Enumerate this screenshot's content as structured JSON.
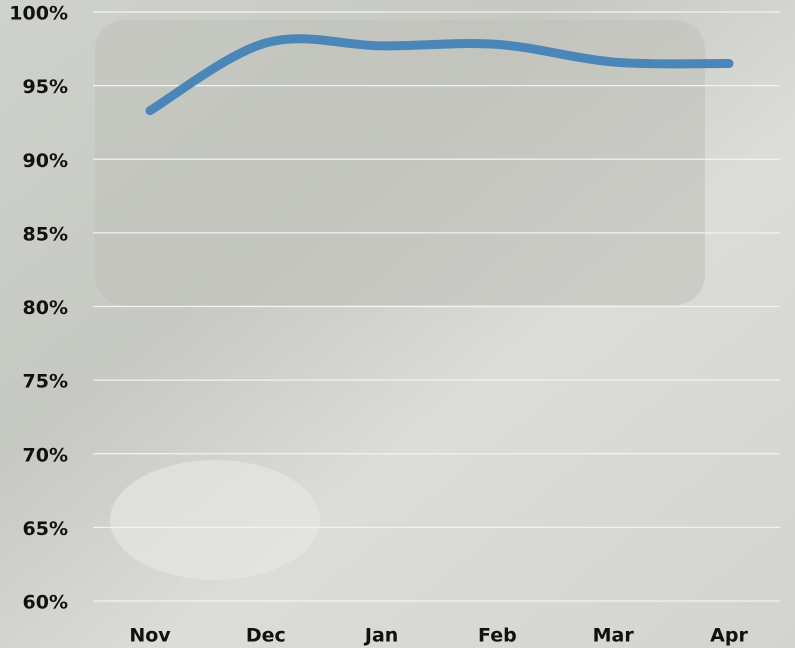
{
  "chart_data": {
    "type": "line",
    "categories": [
      "Nov",
      "Dec",
      "Jan",
      "Feb",
      "Mar",
      "Apr"
    ],
    "series": [
      {
        "color": "#4a86b8",
        "values": [
          93.3,
          97.9,
          97.7,
          97.8,
          96.6,
          96.5
        ]
      }
    ],
    "ylim": [
      60,
      100
    ],
    "yticks": [
      {
        "value": 60,
        "label": "60%"
      },
      {
        "value": 65,
        "label": "65%"
      },
      {
        "value": 70,
        "label": "70%"
      },
      {
        "value": 75,
        "label": "75%"
      },
      {
        "value": 80,
        "label": "80%"
      },
      {
        "value": 85,
        "label": "85%"
      },
      {
        "value": 90,
        "label": "90%"
      },
      {
        "value": 95,
        "label": "95%"
      },
      {
        "value": 100,
        "label": "100%"
      }
    ],
    "grid": true,
    "smooth": true
  }
}
